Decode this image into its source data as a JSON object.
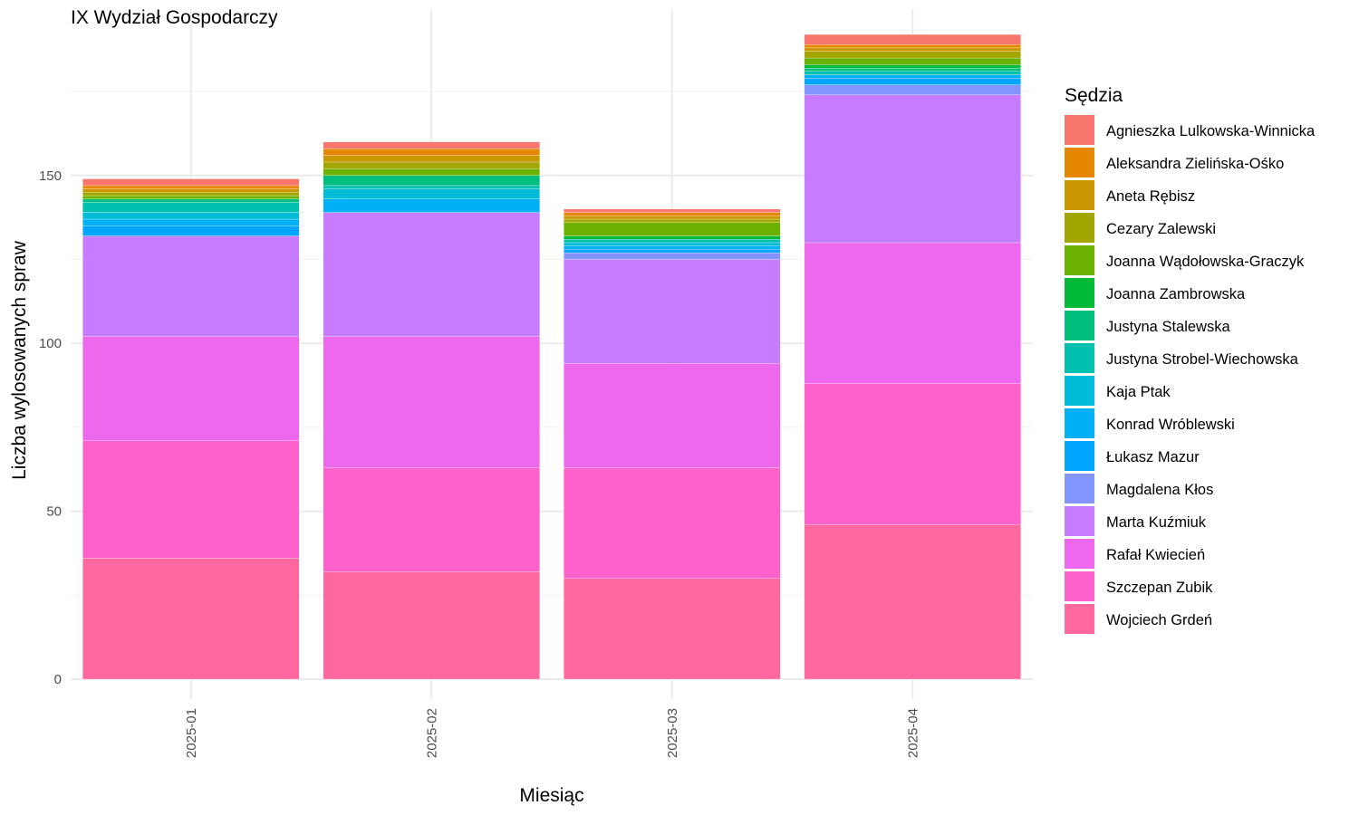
{
  "chart_data": {
    "type": "bar",
    "stacked": true,
    "title": "IX Wydział Gospodarczy",
    "xlabel": "Miesiąc",
    "ylabel": "Liczba wylosowanych spraw",
    "ylim": [
      0,
      195
    ],
    "yticks": [
      0,
      50,
      100,
      150
    ],
    "grid": true,
    "legend_position": "right",
    "legend_title": "Sędzia",
    "categories": [
      "2025-01",
      "2025-02",
      "2025-03",
      "2025-04"
    ],
    "series": [
      {
        "name": "Agnieszka Lulkowska-Winnicka",
        "color": "#F8766D",
        "values": [
          2,
          2,
          1,
          3
        ]
      },
      {
        "name": "Aleksandra Zielińska-Ośko",
        "color": "#E58700",
        "values": [
          1,
          2,
          1,
          1
        ]
      },
      {
        "name": "Aneta Rębisz",
        "color": "#C99800",
        "values": [
          1,
          2,
          1,
          1
        ]
      },
      {
        "name": "Cezary Zalewski",
        "color": "#A3A500",
        "values": [
          1,
          2,
          1,
          2
        ]
      },
      {
        "name": "Joanna Wądołowska-Graczyk",
        "color": "#6BB100",
        "values": [
          1,
          2,
          4,
          2
        ]
      },
      {
        "name": "Joanna Zambrowska",
        "color": "#00BA38",
        "values": [
          0,
          0,
          1,
          1
        ]
      },
      {
        "name": "Justyna Stalewska",
        "color": "#00BF7D",
        "values": [
          1,
          3,
          0,
          1
        ]
      },
      {
        "name": "Justyna Strobel-Wiechowska",
        "color": "#00C0AF",
        "values": [
          3,
          1,
          1,
          1
        ]
      },
      {
        "name": "Kaja Ptak",
        "color": "#00BCD8",
        "values": [
          2,
          3,
          1,
          0
        ]
      },
      {
        "name": "Konrad Wróblewski",
        "color": "#00B0F6",
        "values": [
          2,
          4,
          1,
          1
        ]
      },
      {
        "name": "Łukasz Mazur",
        "color": "#00A5FF",
        "values": [
          3,
          0,
          1,
          2
        ]
      },
      {
        "name": "Magdalena Kłos",
        "color": "#8494FF",
        "values": [
          0,
          0,
          2,
          3
        ]
      },
      {
        "name": "Marta Kuźmiuk",
        "color": "#C77CFF",
        "values": [
          30,
          37,
          31,
          44
        ]
      },
      {
        "name": "Rafał Kwiecień",
        "color": "#ED68ED",
        "values": [
          31,
          39,
          31,
          42
        ]
      },
      {
        "name": "Szczepan Zubik",
        "color": "#FF61CC",
        "values": [
          35,
          31,
          33,
          42
        ]
      },
      {
        "name": "Wojciech Grdeń",
        "color": "#FF689F",
        "values": [
          36,
          32,
          30,
          46
        ]
      }
    ]
  }
}
